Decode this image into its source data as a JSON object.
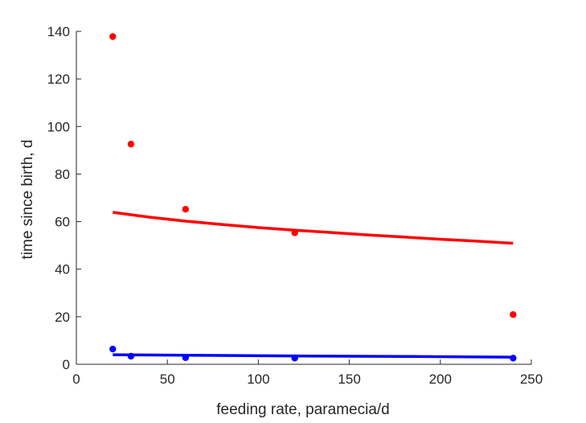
{
  "chart_data": {
    "type": "scatter",
    "xlabel": "feeding rate, paramecia/d",
    "ylabel": "time since birth, d",
    "xlim": [
      0,
      250
    ],
    "ylim": [
      0,
      140
    ],
    "xticks": [
      0,
      50,
      100,
      150,
      200,
      250
    ],
    "yticks": [
      0,
      20,
      40,
      60,
      80,
      100,
      120,
      140
    ],
    "grid": false,
    "series": [
      {
        "kind": "points",
        "color": "#ff0000",
        "x": [
          20,
          30,
          60,
          120,
          240
        ],
        "y": [
          137.8,
          92.6,
          65.2,
          55.3,
          20.9
        ]
      },
      {
        "kind": "line",
        "color": "#ff0000",
        "x": [
          20,
          40,
          60,
          80,
          100,
          120,
          140,
          160,
          180,
          200,
          220,
          240
        ],
        "y": [
          63.9,
          61.9,
          60.2,
          58.8,
          57.5,
          56.4,
          55.4,
          54.4,
          53.5,
          52.6,
          51.8,
          50.9
        ]
      },
      {
        "kind": "points",
        "color": "#0000ff",
        "x": [
          20,
          30,
          60,
          120,
          240
        ],
        "y": [
          6.4,
          3.4,
          2.8,
          2.6,
          2.6
        ]
      },
      {
        "kind": "line",
        "color": "#0000ff",
        "x": [
          20,
          60,
          120,
          180,
          240
        ],
        "y": [
          4.0,
          3.8,
          3.5,
          3.3,
          3.0
        ]
      }
    ]
  }
}
